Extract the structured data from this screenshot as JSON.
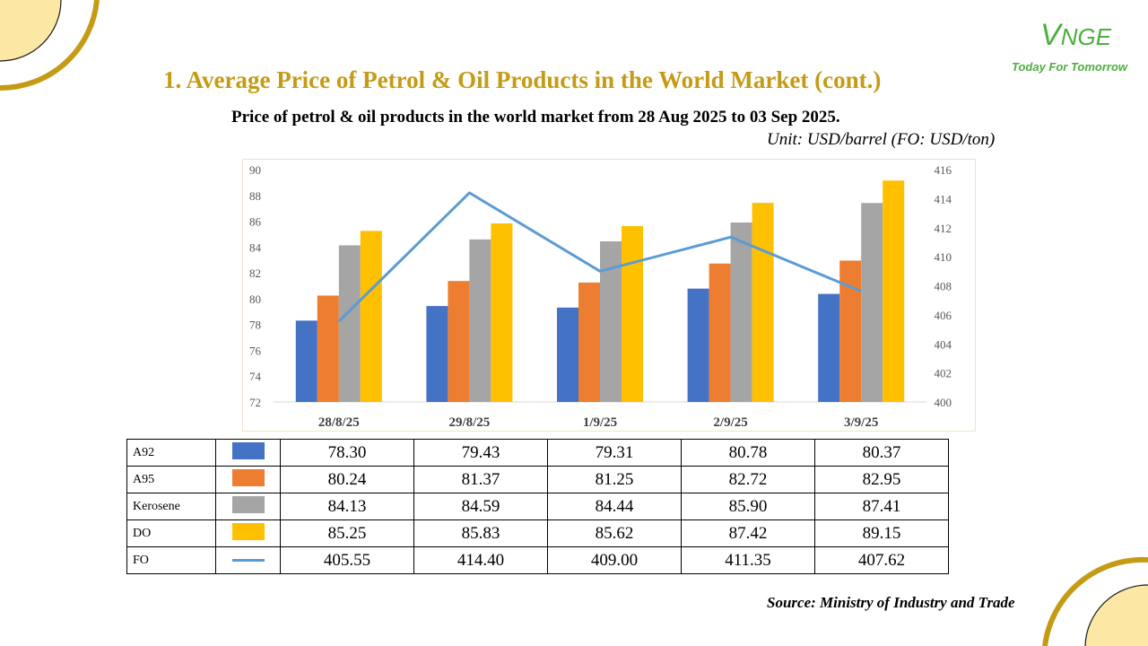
{
  "title": "1. Average Price of Petrol & Oil Products in the World Market (cont.)",
  "subtitle": "Price of petrol & oil products in the world market from 28 Aug 2025 to 03 Sep 2025.",
  "unit": "Unit: USD/barrel (FO: USD/ton)",
  "source": "Source: Ministry of Industry and Trade",
  "logo": {
    "mark_first": "V",
    "mark_rest": "NGE",
    "tagline": "Today For Tomorrow"
  },
  "colors": {
    "title": "#c59b16",
    "logo": "#4caf3e",
    "decor": "#c59b16",
    "decor_fill": "#fde7a5"
  },
  "chart_data": {
    "type": "bar",
    "categories": [
      "28/8/25",
      "29/8/25",
      "1/9/25",
      "2/9/25",
      "3/9/25"
    ],
    "series": [
      {
        "name": "A92",
        "values": [
          78.3,
          79.43,
          79.31,
          80.78,
          80.37
        ],
        "color": "#4472c4",
        "kind": "bar",
        "axis": "left"
      },
      {
        "name": "A95",
        "values": [
          80.24,
          81.37,
          81.25,
          82.72,
          82.95
        ],
        "color": "#ed7d31",
        "kind": "bar",
        "axis": "left"
      },
      {
        "name": "Kerosene",
        "values": [
          84.13,
          84.59,
          84.44,
          85.9,
          87.41
        ],
        "color": "#a5a5a5",
        "kind": "bar",
        "axis": "left"
      },
      {
        "name": "DO",
        "values": [
          85.25,
          85.83,
          85.62,
          87.42,
          89.15
        ],
        "color": "#ffc000",
        "kind": "bar",
        "axis": "left"
      },
      {
        "name": "FO",
        "values": [
          405.55,
          414.4,
          409.0,
          411.35,
          407.62
        ],
        "color": "#5b9bd5",
        "kind": "line",
        "axis": "right"
      }
    ],
    "y_left": {
      "min": 72,
      "max": 90,
      "ticks": [
        "72",
        "74",
        "76",
        "78",
        "80",
        "82",
        "84",
        "86",
        "88",
        "90"
      ]
    },
    "y_right": {
      "min": 400,
      "max": 416,
      "ticks": [
        "400",
        "402",
        "404",
        "406",
        "408",
        "410",
        "412",
        "414",
        "416"
      ]
    },
    "grid": false,
    "legend": "data table below chart",
    "table_values": [
      [
        "78.30",
        "79.43",
        "79.31",
        "80.78",
        "80.37"
      ],
      [
        "80.24",
        "81.37",
        "81.25",
        "82.72",
        "82.95"
      ],
      [
        "84.13",
        "84.59",
        "84.44",
        "85.90",
        "87.41"
      ],
      [
        "85.25",
        "85.83",
        "85.62",
        "87.42",
        "89.15"
      ],
      [
        "405.55",
        "414.40",
        "409.00",
        "411.35",
        "407.62"
      ]
    ]
  }
}
